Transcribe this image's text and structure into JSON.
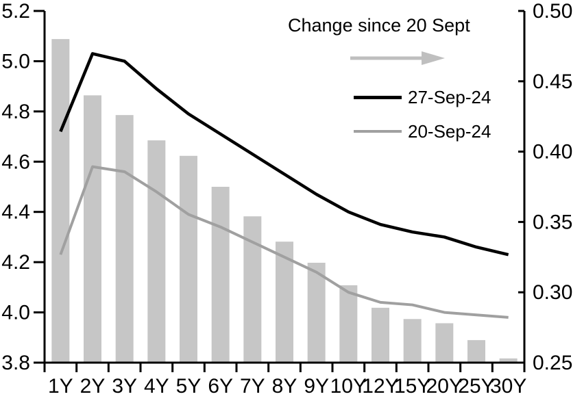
{
  "chart_data": {
    "type": "combo",
    "title": "Change since 20 Sept",
    "categories": [
      "1Y",
      "2Y",
      "3Y",
      "4Y",
      "5Y",
      "6Y",
      "7Y",
      "8Y",
      "9Y",
      "10Y",
      "12Y",
      "15Y",
      "20Y",
      "25Y",
      "30Y"
    ],
    "series": [
      {
        "name": "Change since 20 Sept",
        "type": "bar",
        "axis": "right",
        "color": "#c6c6c6",
        "values": [
          0.48,
          0.44,
          0.426,
          0.408,
          0.397,
          0.375,
          0.354,
          0.336,
          0.321,
          0.305,
          0.289,
          0.281,
          0.278,
          0.266,
          0.253
        ]
      },
      {
        "name": "27-Sep-24",
        "type": "line",
        "axis": "left",
        "color": "#000000",
        "values": [
          4.72,
          5.03,
          5.0,
          4.89,
          4.79,
          4.71,
          4.63,
          4.55,
          4.47,
          4.4,
          4.35,
          4.32,
          4.3,
          4.26,
          4.23
        ]
      },
      {
        "name": "20-Sep-24",
        "type": "line",
        "axis": "left",
        "color": "#a0a0a0",
        "values": [
          4.23,
          4.58,
          4.56,
          4.48,
          4.39,
          4.34,
          4.28,
          4.22,
          4.16,
          4.08,
          4.04,
          4.03,
          4.0,
          3.99,
          3.98
        ]
      }
    ],
    "left_axis": {
      "min": 3.8,
      "max": 5.2,
      "tick_labels": [
        "5.2",
        "5.0",
        "4.8",
        "4.6",
        "4.4",
        "4.2",
        "4.0",
        "3.8"
      ]
    },
    "right_axis": {
      "min": 0.25,
      "max": 0.5,
      "tick_labels": [
        "0.50",
        "0.45",
        "0.40",
        "0.35",
        "0.30",
        "0.25"
      ]
    },
    "legend": {
      "position": "top-right-inside",
      "arrow_color": "#bfbfbf"
    },
    "grid": false,
    "axis_color": "#000000",
    "text_color": "#000000"
  }
}
